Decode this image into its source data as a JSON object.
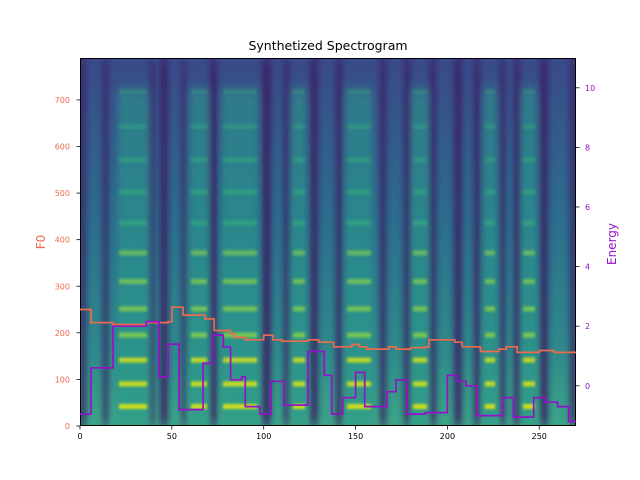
{
  "chart_data": {
    "type": "heatmap",
    "title": "Synthetized Spectrogram",
    "colormap": "viridis",
    "xlim": [
      0,
      270
    ],
    "x_ticks": [
      0,
      50,
      100,
      150,
      200,
      250
    ],
    "left_axis": {
      "label": "F0",
      "color": "#ee6a4d",
      "ylim": [
        0,
        790
      ],
      "ticks": [
        0,
        100,
        200,
        300,
        400,
        500,
        600,
        700
      ]
    },
    "right_axis": {
      "label": "Energy",
      "color": "#9512c9",
      "ylim": [
        -1.35,
        11
      ],
      "ticks": [
        0,
        2,
        4,
        6,
        8,
        10
      ]
    },
    "series": [
      {
        "name": "F0",
        "axis": "left",
        "color": "#ee6a4d",
        "step": true,
        "points": [
          [
            0,
            250
          ],
          [
            6,
            222
          ],
          [
            18,
            218
          ],
          [
            36,
            222
          ],
          [
            48,
            224
          ],
          [
            50,
            255
          ],
          [
            56,
            238
          ],
          [
            68,
            230
          ],
          [
            73,
            205
          ],
          [
            82,
            198
          ],
          [
            84,
            190
          ],
          [
            90,
            185
          ],
          [
            100,
            195
          ],
          [
            105,
            185
          ],
          [
            110,
            182
          ],
          [
            124,
            185
          ],
          [
            130,
            180
          ],
          [
            138,
            170
          ],
          [
            148,
            175
          ],
          [
            152,
            170
          ],
          [
            156,
            165
          ],
          [
            168,
            170
          ],
          [
            172,
            165
          ],
          [
            180,
            168
          ],
          [
            188,
            170
          ],
          [
            190,
            185
          ],
          [
            204,
            180
          ],
          [
            208,
            170
          ],
          [
            218,
            160
          ],
          [
            228,
            165
          ],
          [
            232,
            170
          ],
          [
            238,
            158
          ],
          [
            250,
            162
          ],
          [
            258,
            158
          ],
          [
            270,
            158
          ]
        ]
      },
      {
        "name": "Energy",
        "axis": "right",
        "color": "#9512c9",
        "step": true,
        "points": [
          [
            0,
            -0.95
          ],
          [
            6,
            0.6
          ],
          [
            18,
            2.0
          ],
          [
            36,
            2.15
          ],
          [
            43,
            0.3
          ],
          [
            48,
            1.4
          ],
          [
            54,
            -0.8
          ],
          [
            67,
            0.75
          ],
          [
            72,
            1.7
          ],
          [
            78,
            1.3
          ],
          [
            82,
            0.2
          ],
          [
            88,
            0.3
          ],
          [
            90,
            -0.7
          ],
          [
            98,
            -0.95
          ],
          [
            104,
            0.15
          ],
          [
            111,
            -0.65
          ],
          [
            124,
            1.15
          ],
          [
            133,
            0.35
          ],
          [
            137,
            -0.95
          ],
          [
            143,
            -0.4
          ],
          [
            150,
            0.45
          ],
          [
            155,
            -0.7
          ],
          [
            167,
            -0.2
          ],
          [
            172,
            0.2
          ],
          [
            178,
            -0.95
          ],
          [
            188,
            -0.9
          ],
          [
            200,
            0.35
          ],
          [
            205,
            0.15
          ],
          [
            210,
            -0.0
          ],
          [
            216,
            -1.0
          ],
          [
            230,
            -0.4
          ],
          [
            236,
            -1.05
          ],
          [
            247,
            -0.4
          ],
          [
            253,
            -0.55
          ],
          [
            260,
            -0.7
          ],
          [
            266,
            -1.2
          ],
          [
            270,
            -1.2
          ]
        ]
      }
    ]
  }
}
